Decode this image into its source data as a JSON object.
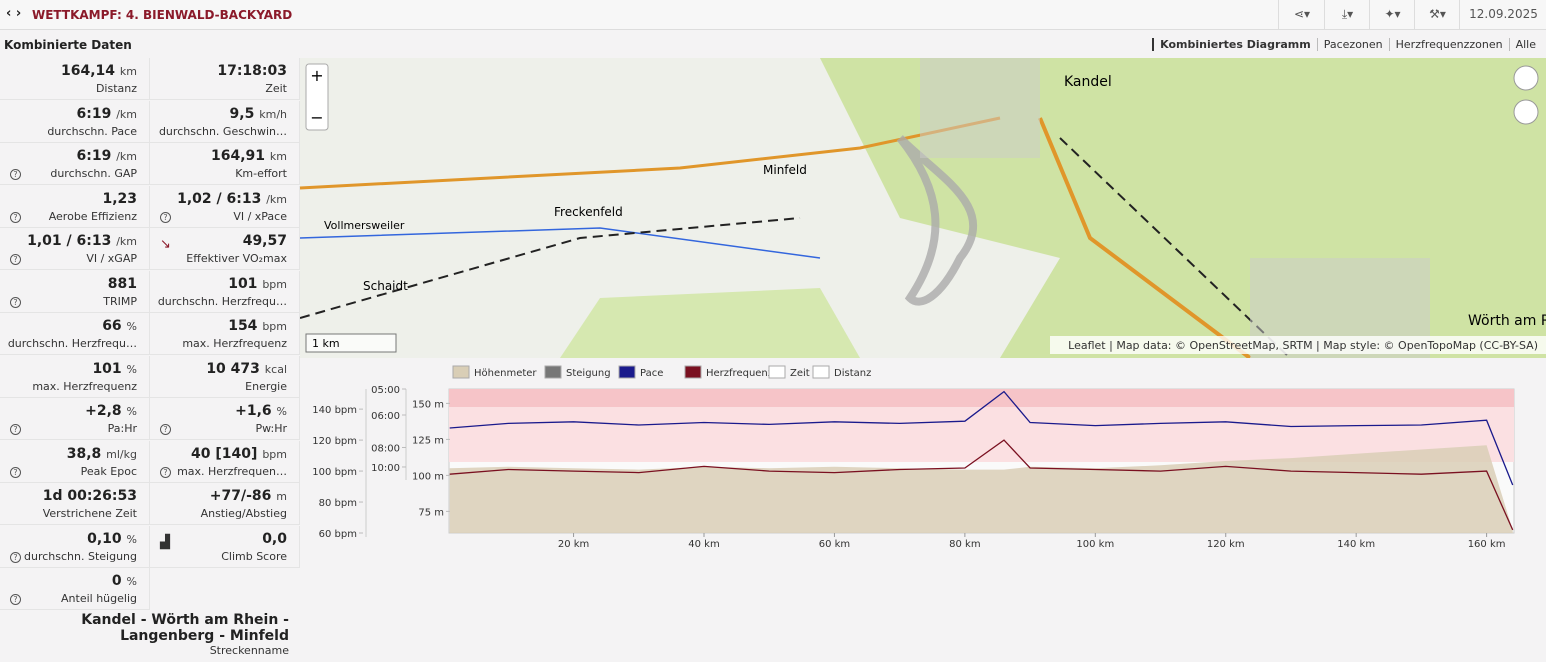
{
  "header": {
    "title": "WETTKAMPF: 4. BIENWALD-BACKYARD",
    "date": "12.09.2025"
  },
  "panel_title": "Kombinierte Daten",
  "stats": [
    {
      "value": "164,14",
      "unit": "km",
      "label": "Distanz"
    },
    {
      "value": "17:18:03",
      "label": "Zeit"
    },
    {
      "value": "6:19",
      "unit": "/km",
      "label": "durchschn. Pace"
    },
    {
      "value": "9,5",
      "unit": "km/h",
      "label": "durchschn. Geschwin…"
    },
    {
      "value": "6:19",
      "unit": "/km",
      "label": "durchschn. GAP",
      "help": true
    },
    {
      "value": "164,91",
      "unit": "km",
      "label": "Km-effort"
    },
    {
      "value": "1,23",
      "label": "Aerobe Effizienz",
      "help": true
    },
    {
      "value": "1,02 / 6:13",
      "unit": "/km",
      "label": "VI / xPace",
      "help": true
    },
    {
      "value": "1,01 / 6:13",
      "unit": "/km",
      "label": "VI / xGAP",
      "help": true
    },
    {
      "value": "49,57",
      "label": "Effektiver VO₂max",
      "icon": "arrow"
    },
    {
      "value": "881",
      "label": "TRIMP",
      "help": true
    },
    {
      "value": "101",
      "unit": "bpm",
      "label": "durchschn. Herzfrequ…"
    },
    {
      "value": "66",
      "unit": "%",
      "label": "durchschn. Herzfrequ…"
    },
    {
      "value": "154",
      "unit": "bpm",
      "label": "max. Herzfrequenz"
    },
    {
      "value": "101",
      "unit": "%",
      "label": "max. Herzfrequenz"
    },
    {
      "value": "10 473",
      "unit": "kcal",
      "label": "Energie"
    },
    {
      "value": "+2,8",
      "unit": "%",
      "label": "Pa:Hr",
      "help": true
    },
    {
      "value": "+1,6",
      "unit": "%",
      "label": "Pw:Hr",
      "help": true
    },
    {
      "value": "38,8",
      "unit": "ml/kg",
      "label": "Peak Epoc",
      "help": true
    },
    {
      "value": "40 [140]",
      "unit": "bpm",
      "label": "max. Herzfrequen…",
      "help": true
    },
    {
      "value": "1d 00:26:53",
      "label": "Verstrichene Zeit"
    },
    {
      "value": "+77/-86",
      "unit": "m",
      "label": "Anstieg/Abstieg"
    },
    {
      "value": "0,10",
      "unit": "%",
      "label": "durchschn. Steigung",
      "help": true
    },
    {
      "value": "0,0",
      "label": "Climb Score",
      "icon": "chart"
    },
    {
      "value": "0",
      "unit": "%",
      "label": "Anteil hügelig",
      "help": true
    }
  ],
  "route": {
    "name": "Kandel - Wörth am Rhein - Langenberg - Minfeld",
    "label": "Streckenname"
  },
  "tabs": [
    "Kombiniertes Diagramm",
    "Pacezonen",
    "Herzfrequenzzonen",
    "Alle"
  ],
  "map": {
    "zoom_in": "+",
    "zoom_out": "−",
    "scale": "1 km",
    "attribution": "Leaflet | Map data: © OpenStreetMap, SRTM | Map style: © OpenTopoMap (CC-BY-SA)",
    "places": [
      "Kandel",
      "Minfeld",
      "Freckenfeld",
      "Vollmersweiler",
      "Schaidt",
      "Wörth am R"
    ]
  },
  "chart_data": {
    "type": "line",
    "x": [
      1,
      10,
      20,
      30,
      40,
      50,
      60,
      70,
      80,
      86,
      90,
      100,
      110,
      120,
      130,
      140,
      150,
      160,
      164
    ],
    "xlim": [
      0.9,
      164.2
    ],
    "xticks": [
      {
        "value": 20,
        "label": "20 km"
      },
      {
        "value": 40,
        "label": "40 km"
      },
      {
        "value": 60,
        "label": "60 km"
      },
      {
        "value": 80,
        "label": "80 km"
      },
      {
        "value": 100,
        "label": "100 km"
      },
      {
        "value": 120,
        "label": "120 km"
      },
      {
        "value": 140,
        "label": "140 km"
      },
      {
        "value": 160,
        "label": "160 km"
      }
    ],
    "ylim": [
      60,
      160
    ],
    "yticks": [
      {
        "value": 150,
        "label": "150 m"
      },
      {
        "value": 125,
        "label": "125 m"
      },
      {
        "value": 100,
        "label": "100 m"
      },
      {
        "value": 75,
        "label": "75 m"
      }
    ],
    "y2lim": [
      60,
      153
    ],
    "y2ticks": [
      {
        "value": 140,
        "label": "140 bpm"
      },
      {
        "value": 120,
        "label": "120 bpm"
      },
      {
        "value": 100,
        "label": "100 bpm"
      },
      {
        "value": 80,
        "label": "80 bpm"
      },
      {
        "value": 60,
        "label": "60 bpm"
      }
    ],
    "y3lim": [
      3913,
      300
    ],
    "y3ticks": [
      {
        "value": 300,
        "label": "05:00"
      },
      {
        "value": 360,
        "label": "06:00"
      },
      {
        "value": 480,
        "label": "08:00"
      },
      {
        "value": 600,
        "label": "10:00"
      }
    ],
    "series": [
      {
        "name": "Höhenmeter",
        "color": "#d9ceb6",
        "values": [
          105,
          106,
          105,
          104,
          106,
          105,
          106,
          105,
          104,
          104,
          106,
          105,
          107,
          110,
          112,
          115,
          118,
          121,
          62
        ]
      },
      {
        "name": "Steigung",
        "color": "#777777",
        "values": null
      },
      {
        "name": "Pace",
        "color": "#1a1a8c",
        "axis": "y3",
        "values": [
          400,
          385,
          380,
          390,
          382,
          388,
          380,
          385,
          378,
          305,
          382,
          392,
          385,
          380,
          395,
          392,
          390,
          375,
          780
        ]
      },
      {
        "name": "Herzfrequenz",
        "color": "#7a1020",
        "axis": "y2",
        "values": [
          98,
          101,
          100,
          99,
          103,
          100,
          99,
          101,
          102,
          120,
          102,
          101,
          100,
          103,
          100,
          99,
          98,
          100,
          62
        ]
      },
      {
        "name": "Zeit",
        "color": "#ffffff",
        "values": null
      },
      {
        "name": "Distanz",
        "color": "#ffffff",
        "values": null
      }
    ]
  }
}
